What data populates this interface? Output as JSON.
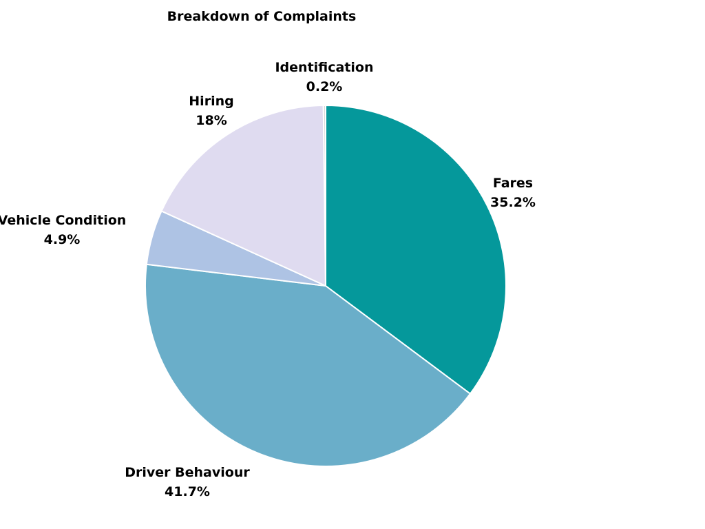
{
  "chart_data": {
    "type": "pie",
    "title": "Breakdown of Complaints",
    "start_angle_deg": 0,
    "direction": "clockwise",
    "slices": [
      {
        "label": "Fares",
        "value": 35.2,
        "display": "35.2%",
        "color": "#05989B"
      },
      {
        "label": "Driver Behaviour",
        "value": 41.7,
        "display": "41.7%",
        "color": "#6AAEC9"
      },
      {
        "label": "Vehicle Condition",
        "value": 4.9,
        "display": "4.9%",
        "color": "#AEC3E4"
      },
      {
        "label": "Hiring",
        "value": 18,
        "display": "18%",
        "color": "#DFDBF0"
      },
      {
        "label": "Identification",
        "value": 0.2,
        "display": "0.2%",
        "color": "#D8D8D8"
      }
    ],
    "legend": "none"
  }
}
